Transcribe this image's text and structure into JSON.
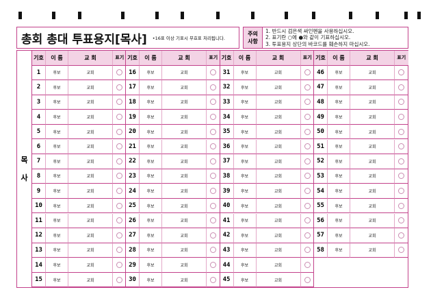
{
  "title": "총회 총대 투표용지[목사]",
  "header_note": "•16표 이상 기표시 무효표 처리됩니다.",
  "notice": {
    "label_top": "주의",
    "label_bottom": "사항",
    "items": [
      "1. 반드시 검은색 싸인펜을 사용하십시오.",
      "2. 표기란 ○에 ●와 같이 기표하십시오.",
      "3. 투표용지 상단의 바코드를 훼손하지 마십시오."
    ]
  },
  "side_label": [
    "목",
    "사"
  ],
  "columns": {
    "number": "기호",
    "name": "이 름",
    "church": "교  회",
    "mark": "표기"
  },
  "candidate_name": "후보",
  "candidate_church": "교회",
  "groups": [
    [
      "1",
      "2",
      "3",
      "4",
      "5",
      "6",
      "7",
      "8",
      "9",
      "10",
      "11",
      "12",
      "13",
      "14",
      "15"
    ],
    [
      "16",
      "17",
      "18",
      "19",
      "20",
      "21",
      "22",
      "23",
      "24",
      "25",
      "26",
      "27",
      "28",
      "29",
      "30"
    ],
    [
      "31",
      "32",
      "33",
      "34",
      "35",
      "36",
      "37",
      "38",
      "39",
      "40",
      "41",
      "42",
      "43",
      "44",
      "45"
    ],
    [
      "46",
      "47",
      "48",
      "49",
      "50",
      "51",
      "52",
      "53",
      "54",
      "55",
      "56",
      "57",
      "58"
    ]
  ],
  "colors": {
    "border": "#c2408a",
    "header_bg": "#f3d3e5"
  }
}
